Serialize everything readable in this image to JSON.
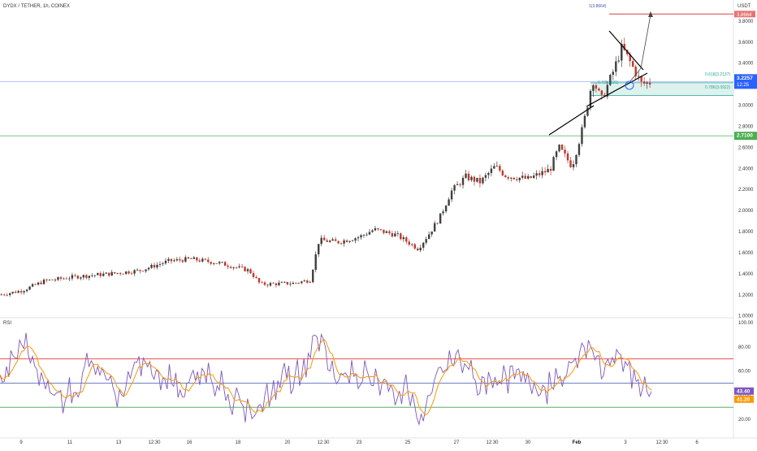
{
  "header": {
    "symbol_title": "DYDX / TETHER, 1h, COINEX",
    "currency": "USDT"
  },
  "price_axis": {
    "ticks": [
      "3.8000",
      "3.6000",
      "3.4000",
      "3.2000",
      "3.0000",
      "2.8000",
      "2.6000",
      "2.4000",
      "2.2000",
      "2.0000",
      "1.8000",
      "1.6000",
      "1.4000",
      "1.2000",
      "1.0000"
    ],
    "tick_values": [
      3.8,
      3.6,
      3.4,
      3.2,
      3.0,
      2.8,
      2.6,
      2.4,
      2.2,
      2.0,
      1.8,
      1.6,
      1.4,
      1.2,
      1.0
    ],
    "ylim": [
      0.99,
      4.0
    ],
    "current_price_label": "3.2257",
    "current_price_value": 3.2257,
    "countdown_label": "12:25",
    "support_label": "2.7100",
    "support_value": 2.71,
    "target_label": "3.8664",
    "target_value": 3.8664
  },
  "annotations": {
    "target_fib": "1(3.8664)",
    "fib_618": "0.618(3.2137)",
    "fib_786": "0.786(3.0922)",
    "fib_mid": "0.7(3.1521)"
  },
  "rsi": {
    "label": "RSI",
    "ticks": [
      "100.00",
      "80.00",
      "60.00",
      "40.00",
      "20.00"
    ],
    "tick_values": [
      100,
      80,
      60,
      40,
      20
    ],
    "upper_band": 70,
    "lower_band": 30,
    "mid_band": 50,
    "rsi_value_label": "43.40",
    "rsi_value": 43.4,
    "ma_value_label": "41.20",
    "ma_value": 41.2
  },
  "time_axis": {
    "labels": [
      "9",
      "11",
      "13",
      "12:30",
      "16",
      "18",
      "20",
      "12:30",
      "23",
      "25",
      "27",
      "12:30",
      "30",
      "Feb",
      "3",
      "12:30",
      "6"
    ],
    "label_index": [
      0,
      1,
      2,
      3,
      4,
      5,
      6,
      7,
      8,
      9,
      10,
      11,
      12,
      13,
      14,
      15,
      16
    ]
  },
  "colors": {
    "bull": "#3f3f3f",
    "bear": "#c0392b",
    "upper_band": "#e53935",
    "lower_band": "#43a047",
    "mid_band": "#5c6bc0",
    "rsi_line": "#7e57c2",
    "rsi_ma": "#ff9800",
    "support": "#4caf50",
    "target": "#e57373",
    "zone_fill": "#d6efe9",
    "zone_line": "#26a69a",
    "current_price_bg": "#2962ff",
    "current_price_line": "#90a4ff"
  },
  "chart_data": {
    "type": "candlestick",
    "symbol": "DYDX / TETHER, 1h, COINEX",
    "price_anchors": [
      {
        "t": 0.0,
        "p": 1.2
      },
      {
        "t": 0.03,
        "p": 1.24
      },
      {
        "t": 0.06,
        "p": 1.33
      },
      {
        "t": 0.1,
        "p": 1.37
      },
      {
        "t": 0.15,
        "p": 1.4
      },
      {
        "t": 0.19,
        "p": 1.43
      },
      {
        "t": 0.23,
        "p": 1.52
      },
      {
        "t": 0.26,
        "p": 1.54
      },
      {
        "t": 0.3,
        "p": 1.5
      },
      {
        "t": 0.34,
        "p": 1.43
      },
      {
        "t": 0.355,
        "p": 1.3
      },
      {
        "t": 0.4,
        "p": 1.31
      },
      {
        "t": 0.423,
        "p": 1.34
      },
      {
        "t": 0.435,
        "p": 1.72
      },
      {
        "t": 0.46,
        "p": 1.7
      },
      {
        "t": 0.49,
        "p": 1.75
      },
      {
        "t": 0.51,
        "p": 1.82
      },
      {
        "t": 0.54,
        "p": 1.77
      },
      {
        "t": 0.57,
        "p": 1.64
      },
      {
        "t": 0.585,
        "p": 1.78
      },
      {
        "t": 0.6,
        "p": 1.94
      },
      {
        "t": 0.615,
        "p": 2.18
      },
      {
        "t": 0.635,
        "p": 2.32
      },
      {
        "t": 0.655,
        "p": 2.27
      },
      {
        "t": 0.675,
        "p": 2.42
      },
      {
        "t": 0.69,
        "p": 2.33
      },
      {
        "t": 0.72,
        "p": 2.3
      },
      {
        "t": 0.75,
        "p": 2.39
      },
      {
        "t": 0.762,
        "p": 2.6
      },
      {
        "t": 0.78,
        "p": 2.42
      },
      {
        "t": 0.795,
        "p": 2.8
      },
      {
        "t": 0.808,
        "p": 3.25
      },
      {
        "t": 0.82,
        "p": 3.05
      },
      {
        "t": 0.835,
        "p": 3.3
      },
      {
        "t": 0.848,
        "p": 3.55
      },
      {
        "t": 0.86,
        "p": 3.4
      },
      {
        "t": 0.875,
        "p": 3.2
      },
      {
        "t": 0.888,
        "p": 3.22
      }
    ],
    "candle_count": 230,
    "support": 2.71,
    "target": 3.8664,
    "current": 3.2257,
    "fib_levels": {
      "0.618": 3.2137,
      "0.7": 3.1521,
      "0.786": 3.0922,
      "1": 3.8664
    },
    "rsi_anchors": [
      {
        "t": 0.0,
        "v": 58
      },
      {
        "t": 0.03,
        "v": 82
      },
      {
        "t": 0.06,
        "v": 50
      },
      {
        "t": 0.09,
        "v": 38
      },
      {
        "t": 0.12,
        "v": 62
      },
      {
        "t": 0.16,
        "v": 45
      },
      {
        "t": 0.2,
        "v": 70
      },
      {
        "t": 0.24,
        "v": 44
      },
      {
        "t": 0.28,
        "v": 60
      },
      {
        "t": 0.32,
        "v": 36
      },
      {
        "t": 0.355,
        "v": 26
      },
      {
        "t": 0.38,
        "v": 48
      },
      {
        "t": 0.42,
        "v": 65
      },
      {
        "t": 0.435,
        "v": 92
      },
      {
        "t": 0.46,
        "v": 52
      },
      {
        "t": 0.5,
        "v": 56
      },
      {
        "t": 0.53,
        "v": 48
      },
      {
        "t": 0.56,
        "v": 40
      },
      {
        "t": 0.575,
        "v": 18
      },
      {
        "t": 0.6,
        "v": 62
      },
      {
        "t": 0.63,
        "v": 66
      },
      {
        "t": 0.66,
        "v": 50
      },
      {
        "t": 0.7,
        "v": 54
      },
      {
        "t": 0.74,
        "v": 42
      },
      {
        "t": 0.77,
        "v": 58
      },
      {
        "t": 0.8,
        "v": 86
      },
      {
        "t": 0.82,
        "v": 66
      },
      {
        "t": 0.85,
        "v": 72
      },
      {
        "t": 0.87,
        "v": 48
      },
      {
        "t": 0.888,
        "v": 43
      }
    ]
  }
}
